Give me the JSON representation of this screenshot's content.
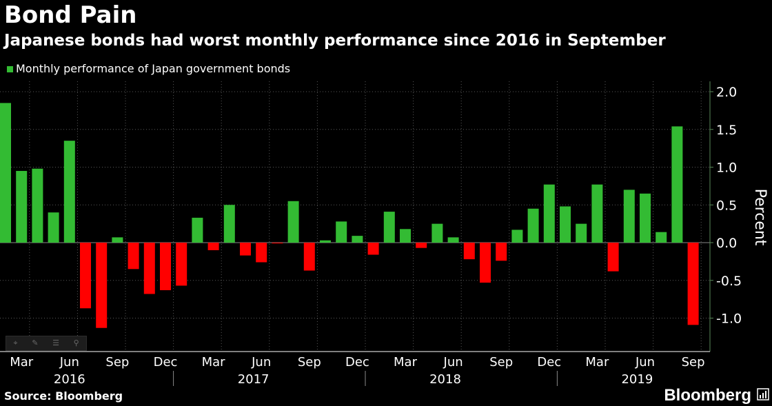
{
  "header": {
    "title": "Bond Pain",
    "subtitle": "Japanese bonds had worst monthly performance since 2016 in September"
  },
  "legend": {
    "label": "Monthly performance of Japan government bonds"
  },
  "footer": {
    "source": "Source: Bloomberg",
    "brand": "Bloomberg"
  },
  "colors": {
    "positive": "#33bb33",
    "negative": "#ff0000",
    "background": "#000000",
    "text": "#ffffff"
  },
  "toolbar_icons": [
    "crosshair-icon",
    "pencil-icon",
    "list-icon",
    "zoom-icon"
  ],
  "chart_data": {
    "type": "bar",
    "title": "Bond Pain",
    "subtitle": "Japanese bonds had worst monthly performance since 2016 in September",
    "ylabel": "Percent",
    "y_axis_position": "right",
    "ylim": [
      -1.3,
      2.1
    ],
    "y_ticks": [
      "2.0",
      "1.5",
      "1.0",
      "0.5",
      "0.0",
      "-0.5",
      "-1.0"
    ],
    "grid": true,
    "legend_position": "top-left",
    "x_tick_labels": [
      "Mar",
      "Jun",
      "Sep",
      "Dec",
      "Mar",
      "Jun",
      "Sep",
      "Dec",
      "Mar",
      "Jun",
      "Sep",
      "Dec",
      "Mar",
      "Jun",
      "Sep"
    ],
    "years": [
      "2016",
      "2017",
      "2018",
      "2019"
    ],
    "categories": [
      "2016-02",
      "2016-03",
      "2016-04",
      "2016-05",
      "2016-06",
      "2016-07",
      "2016-08",
      "2016-09",
      "2016-10",
      "2016-11",
      "2016-12",
      "2017-01",
      "2017-02",
      "2017-03",
      "2017-04",
      "2017-05",
      "2017-06",
      "2017-07",
      "2017-08",
      "2017-09",
      "2017-10",
      "2017-11",
      "2017-12",
      "2018-01",
      "2018-02",
      "2018-03",
      "2018-04",
      "2018-05",
      "2018-06",
      "2018-07",
      "2018-08",
      "2018-09",
      "2018-10",
      "2018-11",
      "2018-12",
      "2019-01",
      "2019-02",
      "2019-03",
      "2019-04",
      "2019-05",
      "2019-06",
      "2019-07",
      "2019-08",
      "2019-09"
    ],
    "series": [
      {
        "name": "Monthly performance of Japan government bonds",
        "values": [
          1.85,
          0.95,
          0.98,
          0.4,
          1.35,
          -0.87,
          -1.13,
          0.07,
          -0.35,
          -0.68,
          -0.63,
          -0.57,
          0.33,
          -0.1,
          0.5,
          -0.17,
          -0.26,
          -0.01,
          0.55,
          -0.37,
          0.03,
          0.28,
          0.09,
          -0.16,
          0.41,
          0.18,
          -0.07,
          0.25,
          0.07,
          -0.22,
          -0.53,
          -0.24,
          0.17,
          0.45,
          0.77,
          0.48,
          0.25,
          0.77,
          -0.38,
          0.7,
          0.65,
          0.14,
          1.54,
          -1.09
        ]
      }
    ]
  }
}
